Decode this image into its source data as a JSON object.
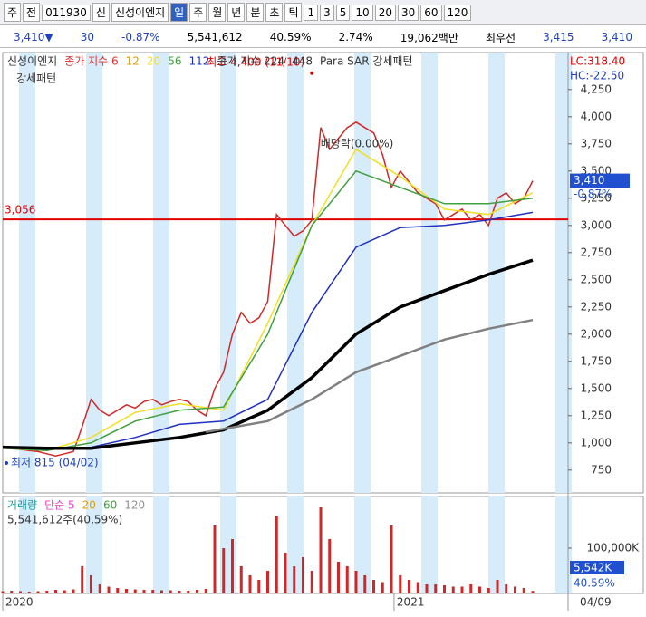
{
  "toolbar": {
    "items": [
      "주",
      "전",
      "011930",
      "신",
      "신성이엔지",
      "일",
      "주",
      "월",
      "년",
      "분",
      "초",
      "틱",
      "1",
      "3",
      "5",
      "10",
      "20",
      "30",
      "60",
      "120"
    ]
  },
  "info": {
    "items": [
      "3,410▼",
      "30",
      "-0.87%",
      "5,541,612",
      "40.59%",
      "2.74%",
      "19,062백만",
      "최우선",
      "3,415",
      "3,410"
    ]
  },
  "chart_data": [
    {
      "type": "line",
      "legend_title": "신성이엔지",
      "indicator_labels": [
        {
          "text": "종가 지수 6",
          "color": "#e03030"
        },
        {
          "text": "12",
          "color": "#e0a000"
        }
      ],
      "extra_legend": [
        "Para SAR 강세패턴"
      ],
      "corner_labels": [
        "LC:318.40",
        "HC:-22.50"
      ],
      "pattern_label": "강세패턴",
      "xlim": [
        0,
        64
      ],
      "xticks": [
        {
          "value": 0,
          "label": "2020"
        },
        {
          "value": 44.3,
          "label": "2021"
        }
      ],
      "last_date": "04/09",
      "ylim": [
        540,
        4590
      ],
      "yticks": [
        750,
        {
          "value": 1000,
          "label": "1,000"
        },
        {
          "value": 1250,
          "label": "1,250"
        },
        {
          "value": 1500,
          "label": "1,500"
        },
        {
          "value": 1750,
          "label": "1,750"
        },
        {
          "value": 2000,
          "label": "2,000"
        },
        {
          "value": 2250,
          "label": "2,250"
        },
        {
          "value": 2500,
          "label": "2,500"
        },
        {
          "value": 2750,
          "label": "2,750"
        },
        {
          "value": 3000,
          "label": "3,000"
        },
        {
          "value": 3250,
          "label": "3,250"
        },
        {
          "value": 3500,
          "label": "3,500"
        },
        {
          "value": 3750,
          "label": "3,750"
        },
        {
          "value": 4000,
          "label": "4,000"
        },
        {
          "value": 4250,
          "label": "4,250"
        }
      ],
      "ref_line": {
        "value": 3056,
        "label": "3,056",
        "color": "#e00000"
      },
      "high": {
        "value": 4400,
        "x": 35,
        "label": "최고 4,400 (11/10)"
      },
      "low": {
        "value": 815,
        "x": 0,
        "label": "최저 815 (04/02)"
      },
      "event": {
        "x": 37,
        "label": "배당락(0.00%)"
      },
      "price_tag": {
        "value": 3410,
        "label": "3,410",
        "change": "-0.87%"
      },
      "series": [
        {
          "name": "신성이엔지",
          "color": "#d02828",
          "values": [
            960,
            950,
            940,
            930,
            920,
            900,
            880,
            900,
            920,
            1150,
            1400,
            1300,
            1250,
            1300,
            1350,
            1320,
            1380,
            1400,
            1350,
            1380,
            1400,
            1380,
            1300,
            1250,
            1500,
            1650,
            2000,
            2200,
            2100,
            2150,
            2300,
            3100,
            3000,
            2900,
            2950,
            3050,
            3900,
            3700,
            3800,
            3900,
            3950,
            3900,
            3850,
            3650,
            3350,
            3500,
            3400,
            3300,
            3250,
            3200,
            3050,
            3100,
            3150,
            3050,
            3100,
            3000,
            3250,
            3300,
            3200,
            3250,
            3410
          ]
        },
        {
          "name": "20",
          "color": "#f0e020",
          "x": [
            0,
            5,
            10,
            15,
            20,
            25,
            30,
            35,
            40,
            45,
            50,
            55,
            60
          ],
          "values": [
            950,
            930,
            1050,
            1280,
            1360,
            1300,
            2100,
            3000,
            3700,
            3450,
            3150,
            3100,
            3300
          ]
        },
        {
          "name": "56",
          "color": "#40a040",
          "x": [
            0,
            5,
            10,
            15,
            20,
            25,
            30,
            35,
            40,
            45,
            50,
            55,
            60
          ],
          "values": [
            950,
            930,
            1000,
            1200,
            1300,
            1330,
            2000,
            3000,
            3500,
            3350,
            3200,
            3200,
            3250
          ]
        },
        {
          "name": "112",
          "color": "#2030c0",
          "x": [
            0,
            5,
            10,
            15,
            20,
            25,
            30,
            35,
            40,
            45,
            50,
            55,
            60
          ],
          "values": [
            960,
            940,
            960,
            1050,
            1170,
            1200,
            1400,
            2200,
            2800,
            2980,
            3000,
            3050,
            3120
          ]
        },
        {
          "name": "종가 지수 224",
          "color": "#000000",
          "width": 3.5,
          "x": [
            0,
            5,
            10,
            15,
            20,
            25,
            30,
            35,
            40,
            45,
            50,
            55,
            60
          ],
          "values": [
            960,
            950,
            950,
            1000,
            1050,
            1120,
            1300,
            1600,
            2000,
            2250,
            2400,
            2550,
            2680
          ]
        },
        {
          "name": "448",
          "color": "#808080",
          "width": 2.5,
          "x": [
            23,
            30,
            35,
            40,
            45,
            50,
            55,
            60
          ],
          "values": [
            1100,
            1200,
            1400,
            1650,
            1800,
            1950,
            2050,
            2130
          ]
        }
      ]
    },
    {
      "type": "bar",
      "xlim": [
        0,
        64
      ],
      "ylim": [
        0,
        214000
      ],
      "yticks": [
        {
          "value": 100000,
          "label": "100,000K"
        }
      ],
      "legend": [
        "거래량",
        "단순 5",
        "20",
        "60",
        "120"
      ],
      "legend_colors": [
        "#20a0a0",
        "#e040c0",
        "#e0a000",
        "#40a040",
        "#909090"
      ],
      "summary": "5,541,612주(40,59%)",
      "current_label": "5,542K",
      "current_ratio": "40.59%",
      "series": [
        {
          "name": "거래량",
          "color": "#d02828",
          "values": [
            5000,
            6000,
            5000,
            4000,
            5000,
            6000,
            8000,
            7000,
            9000,
            60000,
            40000,
            20000,
            15000,
            12000,
            10000,
            9000,
            8000,
            8000,
            7000,
            7000,
            6000,
            6000,
            8000,
            10000,
            150000,
            100000,
            120000,
            60000,
            40000,
            30000,
            50000,
            170000,
            90000,
            60000,
            80000,
            50000,
            190000,
            120000,
            70000,
            60000,
            50000,
            40000,
            30000,
            25000,
            150000,
            40000,
            30000,
            25000,
            20000,
            20000,
            18000,
            15000,
            15000,
            20000,
            15000,
            12000,
            30000,
            20000,
            15000,
            12000,
            5542
          ]
        }
      ]
    }
  ]
}
